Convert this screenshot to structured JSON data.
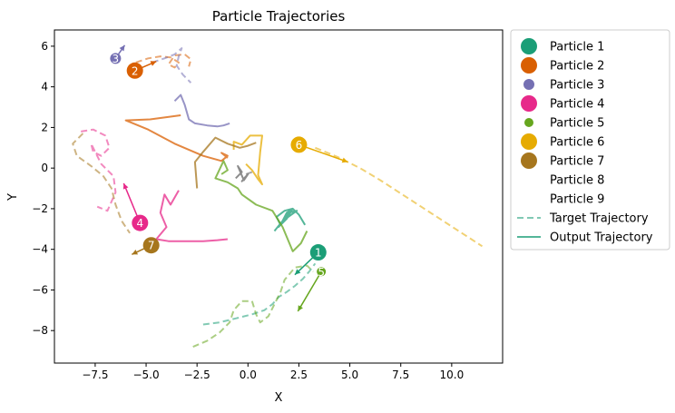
{
  "chart_data": {
    "type": "line",
    "title": "Particle Trajectories",
    "xlabel": "X",
    "ylabel": "Y",
    "xlim": [
      -9.5,
      12.5
    ],
    "ylim": [
      -9.6,
      6.8
    ],
    "xticks": [
      -7.5,
      -5.0,
      -2.5,
      0.0,
      2.5,
      5.0,
      7.5,
      10.0
    ],
    "xtick_labels": [
      "−7.5",
      "−5.0",
      "−2.5",
      "0.0",
      "2.5",
      "5.0",
      "7.5",
      "10.0"
    ],
    "yticks": [
      -8,
      -6,
      -4,
      -2,
      0,
      2,
      4,
      6
    ],
    "ytick_labels": [
      "−8",
      "−6",
      "−4",
      "−2",
      "0",
      "2",
      "4",
      "6"
    ],
    "grid": false,
    "legend": "outside-right",
    "legend_entries": [
      {
        "label": "Particle 1",
        "kind": "marker",
        "color": "#1b9e77",
        "size": 9
      },
      {
        "label": "Particle 2",
        "kind": "marker",
        "color": "#d95f02",
        "size": 9
      },
      {
        "label": "Particle 3",
        "kind": "marker",
        "color": "#7570b3",
        "size": 6
      },
      {
        "label": "Particle 4",
        "kind": "marker",
        "color": "#e7298a",
        "size": 9
      },
      {
        "label": "Particle 5",
        "kind": "marker",
        "color": "#66a61e",
        "size": 5
      },
      {
        "label": "Particle 6",
        "kind": "marker",
        "color": "#e6ab02",
        "size": 9
      },
      {
        "label": "Particle 7",
        "kind": "marker",
        "color": "#a6761d",
        "size": 9
      },
      {
        "label": "Particle 8",
        "kind": "none",
        "color": "#666666",
        "size": 0
      },
      {
        "label": "Particle 9",
        "kind": "none",
        "color": "#888888",
        "size": 0
      },
      {
        "label": "Target Trajectory",
        "kind": "dash",
        "color": "#1b9e77",
        "size": 0
      },
      {
        "label": "Output Trajectory",
        "kind": "solid",
        "color": "#1b9e77",
        "size": 0
      }
    ],
    "particles": [
      {
        "name": "Particle 1",
        "label": "1",
        "color": "#1b9e77",
        "marker_size": 9,
        "position": [
          3.45,
          -4.15
        ],
        "velocity_end": [
          2.3,
          -5.25
        ],
        "target": [
          [
            -2.2,
            -7.7
          ],
          [
            -1.4,
            -7.6
          ],
          [
            -0.6,
            -7.4
          ],
          [
            0.2,
            -7.2
          ],
          [
            0.8,
            -7.0
          ],
          [
            1.2,
            -6.7
          ],
          [
            1.5,
            -6.35
          ],
          [
            1.9,
            -6.1
          ],
          [
            2.3,
            -5.8
          ],
          [
            2.7,
            -5.45
          ],
          [
            3.0,
            -5.1
          ],
          [
            3.3,
            -4.7
          ]
        ],
        "output": [
          [
            2.8,
            -2.8
          ],
          [
            2.5,
            -2.3
          ],
          [
            2.2,
            -2.0
          ],
          [
            1.9,
            -2.2
          ],
          [
            1.6,
            -2.8
          ],
          [
            1.4,
            -2.4
          ],
          [
            1.8,
            -2.1
          ],
          [
            2.2,
            -2.0
          ],
          [
            1.9,
            -2.5
          ],
          [
            1.5,
            -2.9
          ],
          [
            2.0,
            -2.2
          ],
          [
            2.4,
            -2.1
          ],
          [
            1.7,
            -2.6
          ],
          [
            1.3,
            -3.1
          ]
        ]
      },
      {
        "name": "Particle 2",
        "label": "2",
        "color": "#d95f02",
        "marker_size": 9,
        "position": [
          -5.55,
          4.8
        ],
        "velocity_end": [
          -4.5,
          5.25
        ],
        "target": [
          [
            -5.5,
            5.2
          ],
          [
            -4.9,
            5.4
          ],
          [
            -4.3,
            5.5
          ],
          [
            -3.8,
            5.45
          ],
          [
            -3.4,
            5.2
          ],
          [
            -3.6,
            4.95
          ],
          [
            -3.9,
            5.1
          ],
          [
            -3.6,
            5.55
          ],
          [
            -3.1,
            5.6
          ],
          [
            -2.8,
            5.35
          ],
          [
            -2.9,
            5.0
          ]
        ],
        "output": [
          [
            -3.3,
            2.6
          ],
          [
            -4.8,
            2.4
          ],
          [
            -6.0,
            2.35
          ],
          [
            -4.9,
            1.9
          ],
          [
            -3.6,
            1.2
          ],
          [
            -2.2,
            0.6
          ],
          [
            -1.3,
            0.35
          ],
          [
            -1.0,
            0.6
          ],
          [
            -1.3,
            0.75
          ],
          [
            -1.0,
            0.5
          ]
        ]
      },
      {
        "name": "Particle 3",
        "label": "3",
        "color": "#7570b3",
        "marker_size": 6,
        "position": [
          -6.5,
          5.4
        ],
        "velocity_end": [
          -6.05,
          6.05
        ],
        "target": [
          [
            -4.7,
            5.2
          ],
          [
            -4.1,
            5.4
          ],
          [
            -3.6,
            5.6
          ],
          [
            -3.25,
            5.9
          ],
          [
            -3.4,
            5.5
          ],
          [
            -3.5,
            5.05
          ],
          [
            -3.2,
            4.6
          ],
          [
            -2.8,
            4.2
          ]
        ],
        "output": [
          [
            -3.6,
            3.3
          ],
          [
            -3.3,
            3.6
          ],
          [
            -3.1,
            3.1
          ],
          [
            -2.9,
            2.4
          ],
          [
            -2.6,
            2.2
          ],
          [
            -2.0,
            2.1
          ],
          [
            -1.5,
            2.05
          ],
          [
            -1.2,
            2.1
          ],
          [
            -0.9,
            2.2
          ]
        ]
      },
      {
        "name": "Particle 4",
        "label": "4",
        "color": "#e7298a",
        "marker_size": 9,
        "position": [
          -5.3,
          -2.7
        ],
        "velocity_end": [
          -6.1,
          -0.75
        ],
        "target": [
          [
            -8.2,
            1.8
          ],
          [
            -7.6,
            1.9
          ],
          [
            -7.0,
            1.6
          ],
          [
            -6.8,
            1.0
          ],
          [
            -7.2,
            0.6
          ],
          [
            -7.6,
            0.8
          ],
          [
            -7.7,
            1.2
          ],
          [
            -7.2,
            0.2
          ],
          [
            -6.6,
            -0.4
          ],
          [
            -6.5,
            -1.2
          ],
          [
            -6.9,
            -2.1
          ],
          [
            -7.4,
            -1.9
          ]
        ],
        "output": [
          [
            -3.4,
            -1.1
          ],
          [
            -3.8,
            -1.8
          ],
          [
            -4.1,
            -1.3
          ],
          [
            -4.3,
            -2.2
          ],
          [
            -4.0,
            -2.9
          ],
          [
            -4.5,
            -3.5
          ],
          [
            -3.9,
            -3.6
          ],
          [
            -3.0,
            -3.6
          ],
          [
            -2.2,
            -3.6
          ],
          [
            -1.5,
            -3.55
          ],
          [
            -1.0,
            -3.5
          ]
        ]
      },
      {
        "name": "Particle 5",
        "label": "5",
        "color": "#66a61e",
        "marker_size": 5,
        "position": [
          3.6,
          -5.1
        ],
        "velocity_end": [
          2.45,
          -7.05
        ],
        "target": [
          [
            -2.7,
            -8.8
          ],
          [
            -2.0,
            -8.5
          ],
          [
            -1.4,
            -8.1
          ],
          [
            -0.9,
            -7.6
          ],
          [
            -0.7,
            -7.0
          ],
          [
            -0.3,
            -6.55
          ],
          [
            0.2,
            -6.55
          ],
          [
            0.4,
            -7.2
          ],
          [
            0.6,
            -7.6
          ],
          [
            1.0,
            -7.3
          ],
          [
            1.3,
            -6.7
          ],
          [
            1.6,
            -6.1
          ],
          [
            1.8,
            -5.5
          ],
          [
            2.3,
            -4.9
          ],
          [
            2.9,
            -4.8
          ],
          [
            3.2,
            -5.1
          ]
        ],
        "output": [
          [
            -1.3,
            -0.3
          ],
          [
            -1.0,
            -0.1
          ],
          [
            -1.2,
            0.35
          ],
          [
            -1.6,
            -0.5
          ],
          [
            -1.0,
            -0.7
          ],
          [
            -0.5,
            -1.0
          ],
          [
            -0.3,
            -1.3
          ],
          [
            0.4,
            -1.8
          ],
          [
            1.2,
            -2.1
          ],
          [
            1.7,
            -2.9
          ],
          [
            2.2,
            -4.1
          ],
          [
            2.6,
            -3.7
          ],
          [
            2.9,
            -3.1
          ]
        ]
      },
      {
        "name": "Particle 6",
        "label": "6",
        "color": "#e6ab02",
        "marker_size": 9,
        "position": [
          2.5,
          1.15
        ],
        "velocity_end": [
          4.9,
          0.3
        ],
        "target": [
          [
            3.3,
            1.0
          ],
          [
            4.4,
            0.55
          ],
          [
            5.5,
            0.0
          ],
          [
            6.5,
            -0.6
          ],
          [
            7.5,
            -1.25
          ],
          [
            8.5,
            -1.9
          ],
          [
            9.5,
            -2.55
          ],
          [
            10.5,
            -3.2
          ],
          [
            11.5,
            -3.85
          ]
        ],
        "output": [
          [
            -0.7,
            0.9
          ],
          [
            -0.7,
            1.3
          ],
          [
            -0.3,
            1.15
          ],
          [
            0.1,
            1.6
          ],
          [
            0.7,
            1.6
          ],
          [
            0.6,
            0.8
          ],
          [
            0.5,
            -0.35
          ],
          [
            0.7,
            -0.8
          ],
          [
            0.5,
            -0.55
          ],
          [
            0.2,
            -0.1
          ],
          [
            -0.1,
            0.2
          ]
        ]
      },
      {
        "name": "Particle 7",
        "label": "7",
        "color": "#a6761d",
        "marker_size": 9,
        "position": [
          -4.75,
          -3.8
        ],
        "velocity_end": [
          -5.7,
          -4.25
        ],
        "target": [
          [
            -8.1,
            1.7
          ],
          [
            -8.6,
            1.2
          ],
          [
            -8.4,
            0.6
          ],
          [
            -7.7,
            0.1
          ],
          [
            -7.1,
            -0.4
          ],
          [
            -6.7,
            -1.0
          ],
          [
            -6.5,
            -1.8
          ],
          [
            -6.2,
            -2.6
          ],
          [
            -5.8,
            -3.2
          ]
        ],
        "output": [
          [
            -2.5,
            -1.0
          ],
          [
            -2.6,
            0.3
          ],
          [
            -2.2,
            0.8
          ],
          [
            -1.6,
            1.5
          ],
          [
            -1.0,
            1.2
          ],
          [
            -0.4,
            1.0
          ],
          [
            0.0,
            1.1
          ],
          [
            0.4,
            1.25
          ]
        ]
      },
      {
        "name": "Particle 8",
        "label": "",
        "color": "#666666",
        "marker_size": 0,
        "position": null,
        "velocity_end": null,
        "target": [],
        "output": [
          [
            -0.6,
            -0.5
          ],
          [
            -0.3,
            -0.2
          ],
          [
            -0.5,
            0.1
          ],
          [
            -0.2,
            -0.6
          ],
          [
            0.0,
            -0.3
          ],
          [
            -0.3,
            -0.65
          ],
          [
            -0.1,
            -0.4
          ]
        ]
      },
      {
        "name": "Particle 9",
        "label": "",
        "color": "#888888",
        "marker_size": 0,
        "position": null,
        "velocity_end": null,
        "target": [],
        "output": [
          [
            -0.1,
            -0.3
          ],
          [
            0.2,
            -0.2
          ]
        ]
      }
    ]
  }
}
